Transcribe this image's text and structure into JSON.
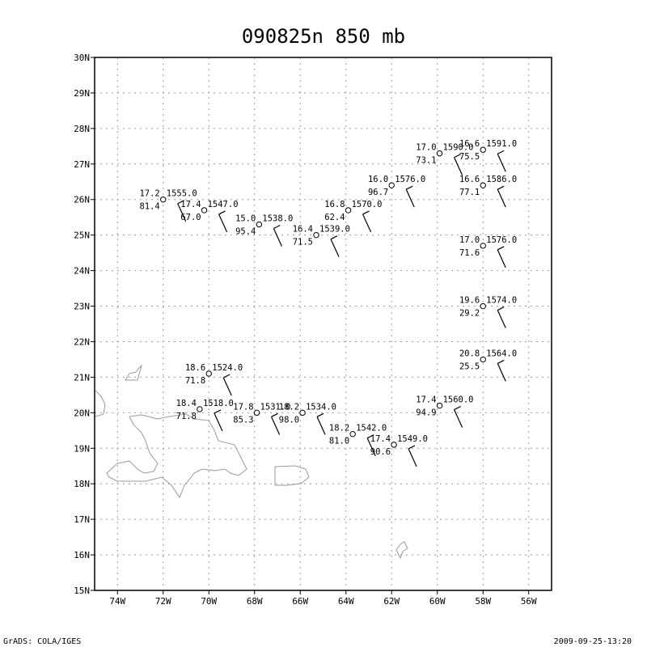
{
  "title": "090825n   850 mb",
  "footer_left": "GrADS: COLA/IGES",
  "footer_right": "2009-09-25-13:20",
  "axes": {
    "lon_range": [
      -75,
      -55
    ],
    "lat_range": [
      15,
      30
    ],
    "x_ticks": [
      "74W",
      "72W",
      "70W",
      "68W",
      "66W",
      "64W",
      "62W",
      "60W",
      "58W",
      "56W"
    ],
    "y_ticks": [
      "15N",
      "16N",
      "17N",
      "18N",
      "19N",
      "20N",
      "21N",
      "22N",
      "23N",
      "24N",
      "25N",
      "26N",
      "27N",
      "28N",
      "29N",
      "30N"
    ],
    "grid": true
  },
  "colors": {
    "coastline": "#9a9a9a",
    "grid": "#999999",
    "text": "#000000"
  },
  "stations": [
    {
      "lon": -72.0,
      "lat": 26.0,
      "temp": "17.2",
      "rh": "81.4",
      "height": "1555.0"
    },
    {
      "lon": -70.2,
      "lat": 25.7,
      "temp": "17.4",
      "rh": "67.0",
      "height": "1547.0"
    },
    {
      "lon": -67.8,
      "lat": 25.3,
      "temp": "15.0",
      "rh": "95.4",
      "height": "1538.0"
    },
    {
      "lon": -65.3,
      "lat": 25.0,
      "temp": "16.4",
      "rh": "71.5",
      "height": "1539.0"
    },
    {
      "lon": -63.9,
      "lat": 25.7,
      "temp": "16.8",
      "rh": "62.4",
      "height": "1570.0"
    },
    {
      "lon": -62.0,
      "lat": 26.4,
      "temp": "16.0",
      "rh": "96.7",
      "height": "1576.0"
    },
    {
      "lon": -59.9,
      "lat": 27.3,
      "temp": "17.0",
      "rh": "73.1",
      "height": "1590.0"
    },
    {
      "lon": -58.0,
      "lat": 27.4,
      "temp": "16.6",
      "rh": "75.5",
      "height": "1591.0"
    },
    {
      "lon": -58.0,
      "lat": 26.4,
      "temp": "16.6",
      "rh": "77.1",
      "height": "1586.0"
    },
    {
      "lon": -58.0,
      "lat": 24.7,
      "temp": "17.0",
      "rh": "71.6",
      "height": "1576.0"
    },
    {
      "lon": -58.0,
      "lat": 23.0,
      "temp": "19.6",
      "rh": "29.2",
      "height": "1574.0"
    },
    {
      "lon": -58.0,
      "lat": 21.5,
      "temp": "20.8",
      "rh": "25.5",
      "height": "1564.0"
    },
    {
      "lon": -70.0,
      "lat": 21.1,
      "temp": "18.6",
      "rh": "71.8",
      "height": "1524.0"
    },
    {
      "lon": -70.4,
      "lat": 20.1,
      "temp": "18.4",
      "rh": "71.8",
      "height": "1518.0"
    },
    {
      "lon": -67.9,
      "lat": 20.0,
      "temp": "17.8",
      "rh": "85.3",
      "height": "1531.0"
    },
    {
      "lon": -65.9,
      "lat": 20.0,
      "temp": "18.2",
      "rh": "98.0",
      "height": "1534.0"
    },
    {
      "lon": -63.7,
      "lat": 19.4,
      "temp": "18.2",
      "rh": "81.0",
      "height": "1542.0"
    },
    {
      "lon": -61.9,
      "lat": 19.1,
      "temp": "17.4",
      "rh": "90.6",
      "height": "1549.0"
    },
    {
      "lon": -59.9,
      "lat": 20.2,
      "temp": "17.4",
      "rh": "94.9",
      "height": "1560.0"
    }
  ]
}
